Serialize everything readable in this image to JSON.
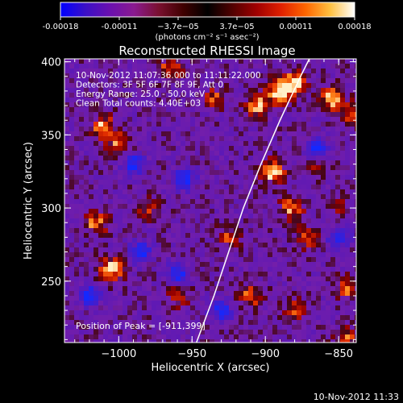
{
  "colorbar": {
    "colors": [
      "#0000ff",
      "#3a10c8",
      "#6a10b0",
      "#8a1a90",
      "#7a1030",
      "#400000",
      "#000000",
      "#500000",
      "#a00000",
      "#e02000",
      "#ff6600",
      "#ffc040",
      "#ffffff"
    ],
    "tick_labels": [
      "-0.00018",
      "-0.00011",
      "−3.7e−05",
      "3.7e−05",
      "0.00011",
      "0.00018"
    ],
    "unit_label": "(photons cm⁻² s⁻¹ asec⁻²)"
  },
  "chart_data": {
    "type": "heatmap",
    "title": "Reconstructed RHESSI Image",
    "xlabel": "Heliocentric X (arcsec)",
    "ylabel": "Heliocentric Y (arcsec)",
    "xlim": [
      -1037,
      -838
    ],
    "ylim": [
      208,
      402
    ],
    "x_ticks": [
      -1000,
      -950,
      -900,
      -850
    ],
    "y_ticks": [
      250,
      300,
      350,
      400
    ],
    "x_tick_labels": [
      "−1000",
      "−950",
      "−900",
      "−850"
    ],
    "y_tick_labels": [
      "250",
      "300",
      "350",
      "400"
    ],
    "annotations": [
      "10-Nov-2012 11:07:36.000 to 11:11:22.000",
      "Detectors: 3F 5F 6F 7F 8F 9F, Att 0",
      "Energy Range: 25.0 - 50.0 keV",
      "Clean     Total counts: 4.40E+03"
    ],
    "peak_label": "Position of Peak = [-911,399]",
    "peak": [
      -911,
      399
    ],
    "limb_curve": [
      [
        -947,
        208
      ],
      [
        -935,
        240
      ],
      [
        -925,
        270
      ],
      [
        -915,
        300
      ],
      [
        -903,
        330
      ],
      [
        -890,
        360
      ],
      [
        -876,
        390
      ],
      [
        -870,
        402
      ]
    ],
    "hotspots": [
      {
        "x": -890,
        "y": 380,
        "level": 1.0
      },
      {
        "x": -880,
        "y": 385,
        "level": 0.9
      },
      {
        "x": -905,
        "y": 370,
        "level": 0.8
      },
      {
        "x": -855,
        "y": 375,
        "level": 0.8
      },
      {
        "x": -840,
        "y": 365,
        "level": 0.7
      },
      {
        "x": -1010,
        "y": 355,
        "level": 0.8
      },
      {
        "x": -1000,
        "y": 343,
        "level": 0.6
      },
      {
        "x": -965,
        "y": 395,
        "level": 0.6
      },
      {
        "x": -935,
        "y": 375,
        "level": 0.5
      },
      {
        "x": -1015,
        "y": 290,
        "level": 0.7
      },
      {
        "x": -980,
        "y": 300,
        "level": 0.4
      },
      {
        "x": -1005,
        "y": 258,
        "level": 0.9
      },
      {
        "x": -960,
        "y": 240,
        "level": 0.5
      },
      {
        "x": -895,
        "y": 325,
        "level": 0.9
      },
      {
        "x": -882,
        "y": 300,
        "level": 0.7
      },
      {
        "x": -870,
        "y": 280,
        "level": 0.6
      },
      {
        "x": -925,
        "y": 280,
        "level": 0.5
      },
      {
        "x": -910,
        "y": 240,
        "level": 0.6
      },
      {
        "x": -880,
        "y": 230,
        "level": 0.5
      },
      {
        "x": -845,
        "y": 245,
        "level": 0.6
      },
      {
        "x": -845,
        "y": 210,
        "level": 0.6
      },
      {
        "x": -865,
        "y": 330,
        "level": 0.5
      },
      {
        "x": -850,
        "y": 300,
        "level": 0.4
      }
    ],
    "coldspots": [
      {
        "x": -990,
        "y": 330
      },
      {
        "x": -985,
        "y": 270
      },
      {
        "x": -955,
        "y": 320
      },
      {
        "x": -960,
        "y": 255
      },
      {
        "x": -865,
        "y": 340
      },
      {
        "x": -850,
        "y": 280
      },
      {
        "x": -1020,
        "y": 240
      },
      {
        "x": -930,
        "y": 230
      }
    ]
  },
  "footer_timestamp": "10-Nov-2012 11:33"
}
